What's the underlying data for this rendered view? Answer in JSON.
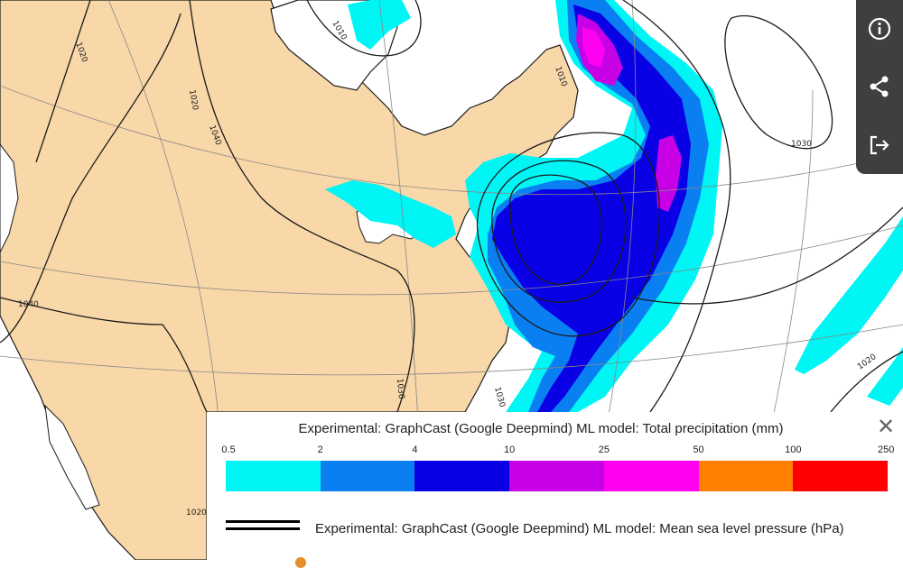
{
  "map": {
    "isobar_labels": [
      "1020",
      "1040",
      "1040",
      "1030",
      "1010",
      "1010",
      "1030",
      "1030",
      "1020",
      "1020",
      "1020"
    ]
  },
  "toolbar": {
    "info_icon": "info-circle-icon",
    "share_icon": "share-icon",
    "export_icon": "export-icon"
  },
  "legend": {
    "title": "Experimental: GraphCast (Google Deepmind) ML model: Total precipitation (mm)",
    "close_label": "✕",
    "scale_ticks": [
      "0.5",
      "2",
      "4",
      "10",
      "25",
      "50",
      "100",
      "250"
    ],
    "scale_colors": [
      "#00f5f5",
      "#0a7ff2",
      "#0a00e6",
      "#c800e6",
      "#ff00f0",
      "#ff7f00",
      "#ff0000"
    ],
    "mslp_label": "Experimental: GraphCast (Google Deepmind) ML model: Mean sea level pressure (hPa)"
  },
  "colors": {
    "land": "#f8d7a8",
    "ocean": "#ffffff",
    "toolbar_bg": "#3f3f3f"
  }
}
